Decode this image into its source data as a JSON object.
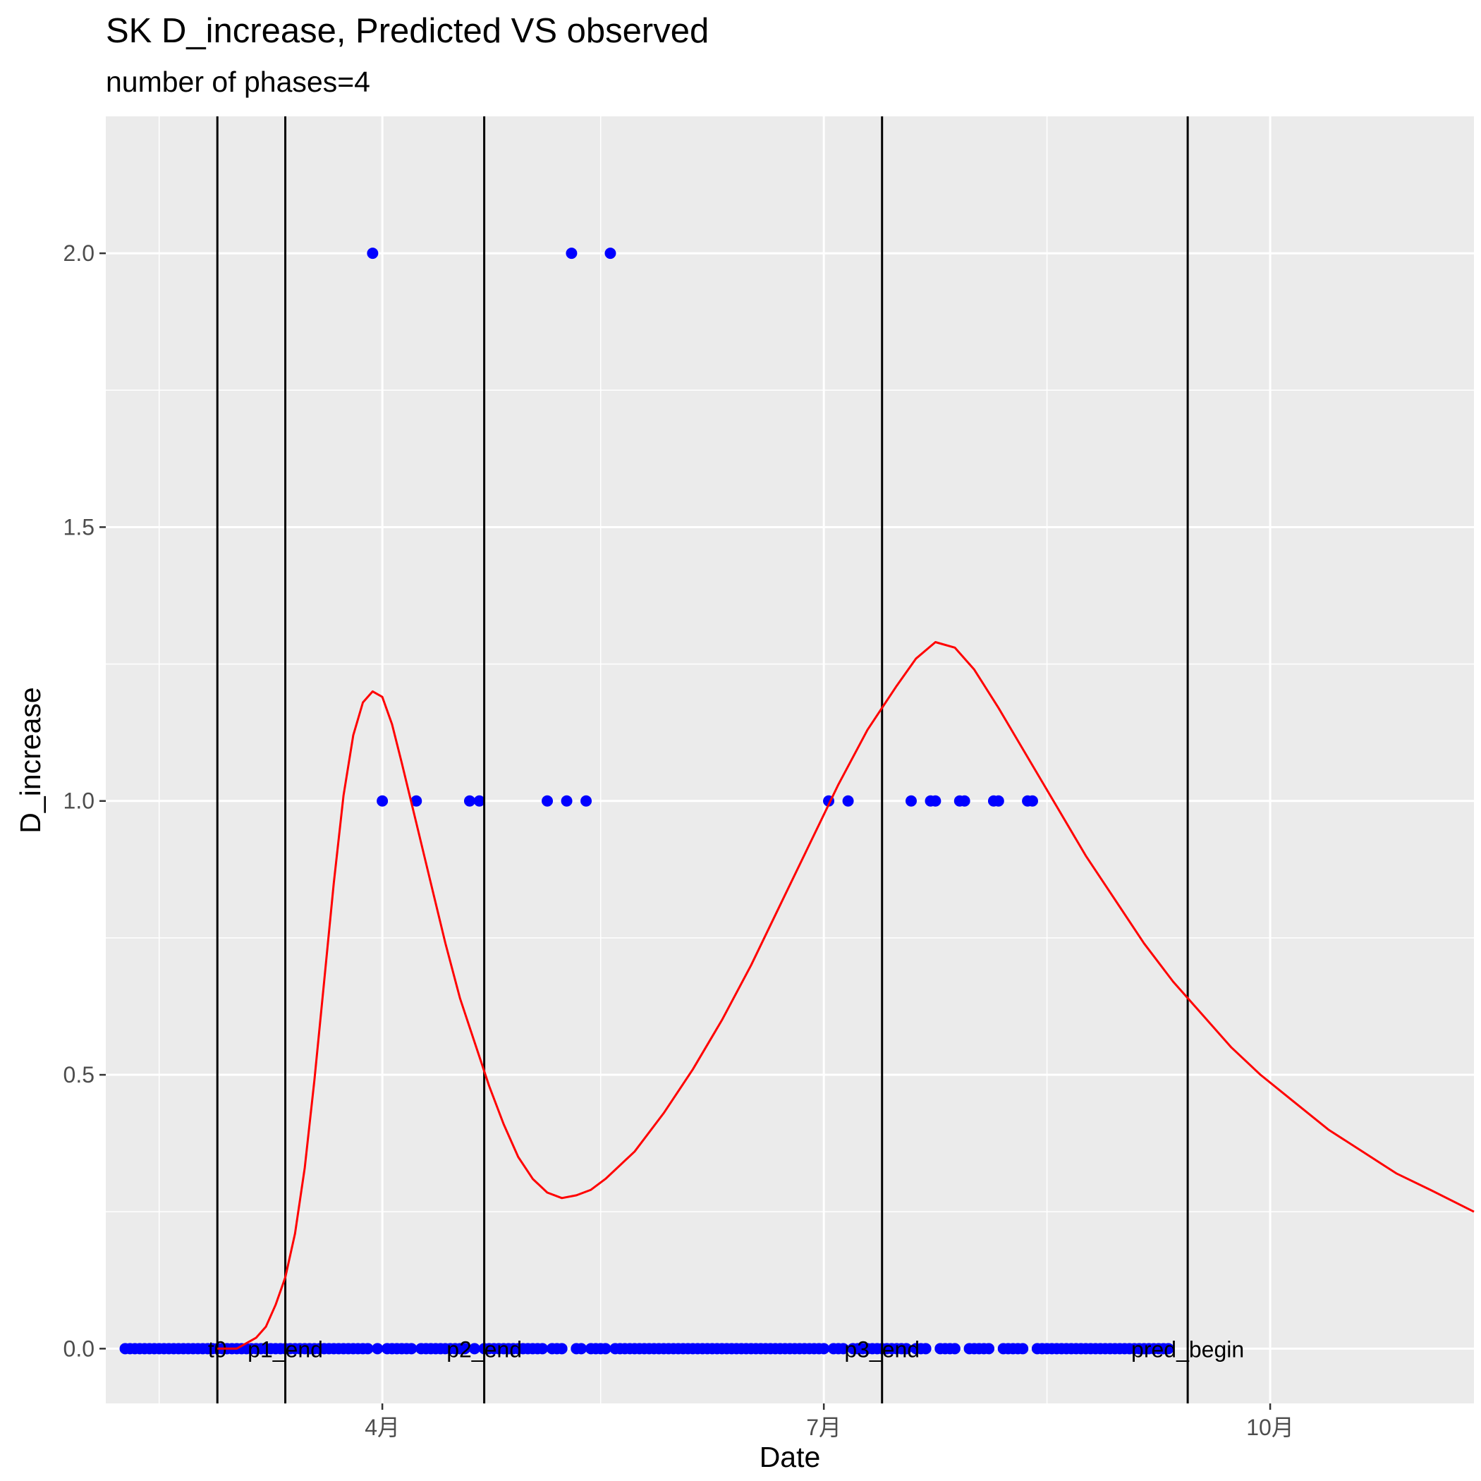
{
  "chart_data": {
    "type": "scatter",
    "title": "SK D_increase, Predicted VS observed",
    "subtitle": "number of phases=4",
    "xlabel": "Date",
    "ylabel": "D_increase",
    "xlim": [
      "2020-02-04",
      "2020-11-12"
    ],
    "ylim": [
      -0.1,
      2.25
    ],
    "grid": true,
    "x_ticks": [
      {
        "date": "2020-04-01",
        "label": "4月"
      },
      {
        "date": "2020-07-01",
        "label": "7月"
      },
      {
        "date": "2020-10-01",
        "label": "10月"
      }
    ],
    "y_ticks": [
      0.0,
      0.5,
      1.0,
      1.5,
      2.0
    ],
    "y_tick_labels": [
      "0.0",
      "0.5",
      "1.0",
      "1.5",
      "2.0"
    ],
    "colors": {
      "panel": "#ebebeb",
      "grid": "#ffffff",
      "observed": "#0000ff",
      "predicted": "#ff0000",
      "vline": "#000000"
    },
    "vlines": [
      {
        "date": "2020-02-27",
        "label": "t0"
      },
      {
        "date": "2020-03-12",
        "label": "p1_end"
      },
      {
        "date": "2020-04-22",
        "label": "p2_end"
      },
      {
        "date": "2020-07-13",
        "label": "p3_end"
      },
      {
        "date": "2020-09-14",
        "label": "pred_begin"
      }
    ],
    "series": [
      {
        "role": "observed",
        "mark": "point",
        "range_start": "2020-02-08",
        "range_end": "2020-09-10",
        "nonzero": [
          {
            "date": "2020-03-30",
            "value": 2
          },
          {
            "date": "2020-04-01",
            "value": 1
          },
          {
            "date": "2020-04-08",
            "value": 1
          },
          {
            "date": "2020-04-19",
            "value": 1
          },
          {
            "date": "2020-04-21",
            "value": 1
          },
          {
            "date": "2020-05-05",
            "value": 1
          },
          {
            "date": "2020-05-09",
            "value": 1
          },
          {
            "date": "2020-05-10",
            "value": 2
          },
          {
            "date": "2020-05-13",
            "value": 1
          },
          {
            "date": "2020-05-18",
            "value": 2
          },
          {
            "date": "2020-07-02",
            "value": 1
          },
          {
            "date": "2020-07-06",
            "value": 1
          },
          {
            "date": "2020-07-19",
            "value": 1
          },
          {
            "date": "2020-07-23",
            "value": 1
          },
          {
            "date": "2020-07-24",
            "value": 1
          },
          {
            "date": "2020-07-29",
            "value": 1
          },
          {
            "date": "2020-07-30",
            "value": 1
          },
          {
            "date": "2020-08-05",
            "value": 1
          },
          {
            "date": "2020-08-06",
            "value": 1
          },
          {
            "date": "2020-08-12",
            "value": 1
          },
          {
            "date": "2020-08-13",
            "value": 1
          }
        ],
        "other_value": 0
      },
      {
        "role": "predicted",
        "mark": "line",
        "points": [
          [
            "2020-02-27",
            0.0
          ],
          [
            "2020-03-02",
            0.0
          ],
          [
            "2020-03-04",
            0.01
          ],
          [
            "2020-03-06",
            0.02
          ],
          [
            "2020-03-08",
            0.04
          ],
          [
            "2020-03-10",
            0.08
          ],
          [
            "2020-03-12",
            0.13
          ],
          [
            "2020-03-14",
            0.21
          ],
          [
            "2020-03-16",
            0.33
          ],
          [
            "2020-03-18",
            0.49
          ],
          [
            "2020-03-20",
            0.67
          ],
          [
            "2020-03-22",
            0.85
          ],
          [
            "2020-03-24",
            1.01
          ],
          [
            "2020-03-26",
            1.12
          ],
          [
            "2020-03-28",
            1.18
          ],
          [
            "2020-03-30",
            1.2
          ],
          [
            "2020-04-01",
            1.19
          ],
          [
            "2020-04-03",
            1.14
          ],
          [
            "2020-04-05",
            1.07
          ],
          [
            "2020-04-08",
            0.96
          ],
          [
            "2020-04-11",
            0.85
          ],
          [
            "2020-04-14",
            0.74
          ],
          [
            "2020-04-17",
            0.64
          ],
          [
            "2020-04-20",
            0.56
          ],
          [
            "2020-04-23",
            0.48
          ],
          [
            "2020-04-26",
            0.41
          ],
          [
            "2020-04-29",
            0.35
          ],
          [
            "2020-05-02",
            0.31
          ],
          [
            "2020-05-05",
            0.285
          ],
          [
            "2020-05-08",
            0.275
          ],
          [
            "2020-05-11",
            0.28
          ],
          [
            "2020-05-14",
            0.29
          ],
          [
            "2020-05-17",
            0.31
          ],
          [
            "2020-05-23",
            0.36
          ],
          [
            "2020-05-29",
            0.43
          ],
          [
            "2020-06-04",
            0.51
          ],
          [
            "2020-06-10",
            0.6
          ],
          [
            "2020-06-16",
            0.7
          ],
          [
            "2020-06-22",
            0.81
          ],
          [
            "2020-06-28",
            0.92
          ],
          [
            "2020-07-04",
            1.03
          ],
          [
            "2020-07-10",
            1.13
          ],
          [
            "2020-07-16",
            1.21
          ],
          [
            "2020-07-20",
            1.26
          ],
          [
            "2020-07-24",
            1.29
          ],
          [
            "2020-07-28",
            1.28
          ],
          [
            "2020-08-01",
            1.24
          ],
          [
            "2020-08-06",
            1.17
          ],
          [
            "2020-08-12",
            1.08
          ],
          [
            "2020-08-18",
            0.99
          ],
          [
            "2020-08-24",
            0.9
          ],
          [
            "2020-08-30",
            0.82
          ],
          [
            "2020-09-05",
            0.74
          ],
          [
            "2020-09-11",
            0.67
          ],
          [
            "2020-09-17",
            0.61
          ],
          [
            "2020-09-23",
            0.55
          ],
          [
            "2020-09-29",
            0.5
          ],
          [
            "2020-10-06",
            0.45
          ],
          [
            "2020-10-13",
            0.4
          ],
          [
            "2020-10-20",
            0.36
          ],
          [
            "2020-10-27",
            0.32
          ],
          [
            "2020-11-03",
            0.29
          ],
          [
            "2020-11-12",
            0.25
          ]
        ]
      }
    ]
  }
}
